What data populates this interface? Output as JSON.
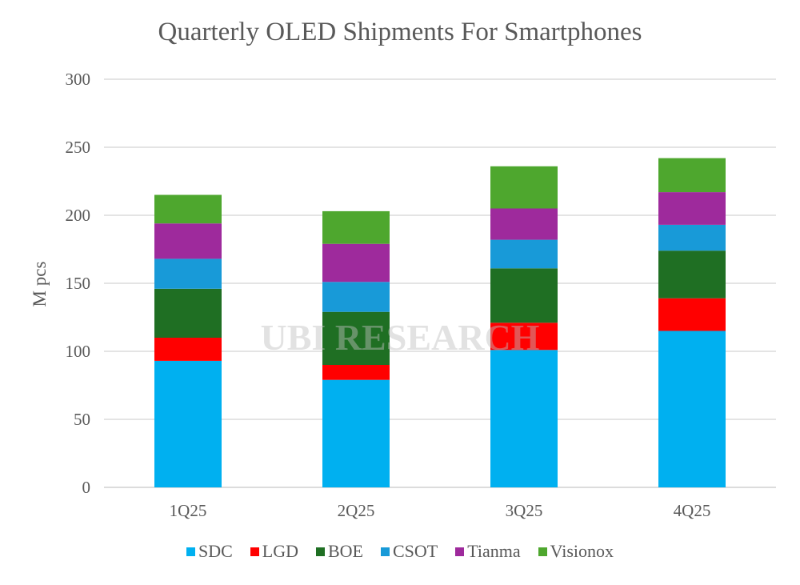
{
  "chart_data": {
    "type": "bar",
    "stacked": true,
    "title": "Quarterly OLED Shipments For Smartphones",
    "xlabel": "",
    "ylabel": "M pcs",
    "ylim": [
      0,
      300
    ],
    "yticks": [
      0,
      50,
      100,
      150,
      200,
      250,
      300
    ],
    "grid": true,
    "legend_position": "bottom",
    "categories": [
      "1Q25",
      "2Q25",
      "3Q25",
      "4Q25"
    ],
    "series": [
      {
        "name": "SDC",
        "color": "#00b0f0",
        "values": [
          93,
          79,
          101,
          115
        ]
      },
      {
        "name": "LGD",
        "color": "#ff0000",
        "values": [
          17,
          11,
          20,
          24
        ]
      },
      {
        "name": "BOE",
        "color": "#1f6f23",
        "values": [
          36,
          39,
          40,
          35
        ]
      },
      {
        "name": "CSOT",
        "color": "#189ad8",
        "values": [
          22,
          22,
          21,
          19
        ]
      },
      {
        "name": "Tianma",
        "color": "#9e2a9c",
        "values": [
          26,
          28,
          23,
          24
        ]
      },
      {
        "name": "Visionox",
        "color": "#4ea72e",
        "values": [
          21,
          24,
          31,
          25
        ]
      }
    ],
    "watermark": "UBI RESEARCH"
  }
}
